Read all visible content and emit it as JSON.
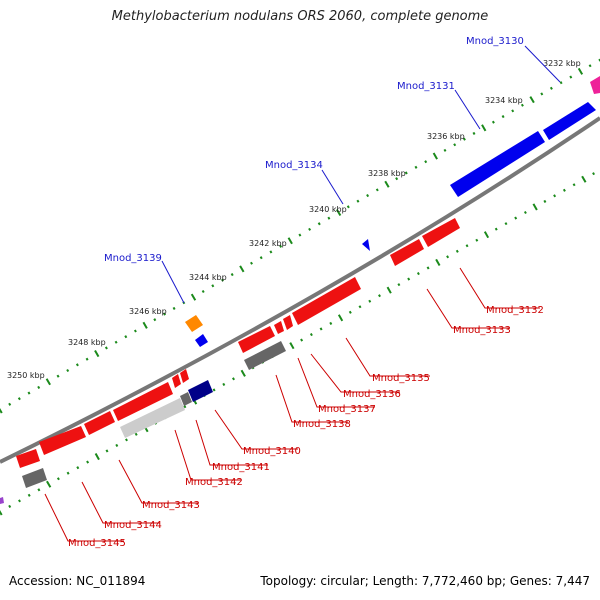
{
  "title": "Methylobacterium nodulans ORS 2060, complete genome",
  "accession": "Accession: NC_011894",
  "topology": "Topology: circular; Length: 7,772,460 bp; Genes: 7,447",
  "colors": {
    "backbone": "#777777",
    "tick": "#1b8a1b",
    "forward_label": "#1a1acc",
    "reverse_label": "#cc0000",
    "gene_red": "#ee1111",
    "gene_blue": "#0000ee",
    "gene_navy": "#000088",
    "gene_gray": "#666666",
    "gene_lightgray": "#cccccc",
    "gene_orange": "#ff8800",
    "gene_magenta": "#ee2299"
  },
  "ticks": [
    "3232 kbp",
    "3234 kbp",
    "3236 kbp",
    "3238 kbp",
    "3240 kbp",
    "3242 kbp",
    "3244 kbp",
    "3246 kbp",
    "3248 kbp",
    "3250 kbp"
  ],
  "forward_labels": [
    "Mnod_3130",
    "Mnod_3131",
    "Mnod_3134",
    "Mnod_3139"
  ],
  "reverse_labels": [
    "Mnod_3132",
    "Mnod_3133",
    "Mnod_3135",
    "Mnod_3136",
    "Mnod_3137",
    "Mnod_3138",
    "Mnod_3140",
    "Mnod_3141",
    "Mnod_3142",
    "Mnod_3143",
    "Mnod_3144",
    "Mnod_3145"
  ]
}
